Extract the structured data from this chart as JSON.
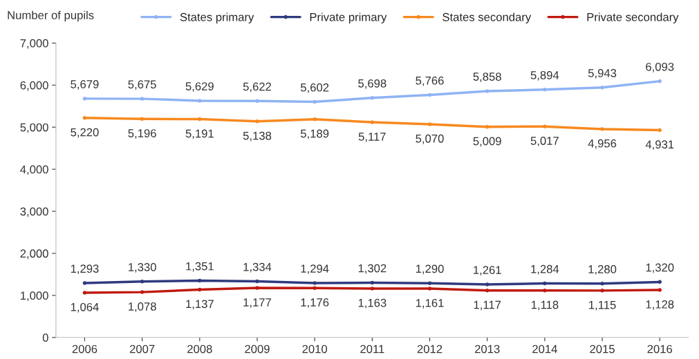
{
  "chart_data": {
    "type": "line",
    "ylabel": "Number of pupils",
    "categories": [
      "2006",
      "2007",
      "2008",
      "2009",
      "2010",
      "2011",
      "2012",
      "2013",
      "2014",
      "2015",
      "2016"
    ],
    "series": [
      {
        "name": "States primary",
        "color": "#8fb3f4",
        "values": [
          5679,
          5675,
          5629,
          5622,
          5602,
          5698,
          5766,
          5858,
          5894,
          5943,
          6093
        ],
        "value_labels": [
          "5,679",
          "5,675",
          "5,629",
          "5,622",
          "5,602",
          "5,698",
          "5,766",
          "5,858",
          "5,894",
          "5,943",
          "6,093"
        ]
      },
      {
        "name": "Private primary",
        "color": "#2f3a7e",
        "values": [
          1293,
          1330,
          1351,
          1334,
          1294,
          1302,
          1290,
          1261,
          1284,
          1280,
          1320
        ],
        "value_labels": [
          "1,293",
          "1,330",
          "1,351",
          "1,334",
          "1,294",
          "1,302",
          "1,290",
          "1,261",
          "1,284",
          "1,280",
          "1,320"
        ]
      },
      {
        "name": "States secondary",
        "color": "#f7891f",
        "values": [
          5220,
          5196,
          5191,
          5138,
          5189,
          5117,
          5070,
          5009,
          5017,
          4956,
          4931
        ],
        "value_labels": [
          "5,220",
          "5,196",
          "5,191",
          "5,138",
          "5,189",
          "5,117",
          "5,070",
          "5,009",
          "5,017",
          "4,956",
          "4,931"
        ]
      },
      {
        "name": "Private secondary",
        "color": "#c01a10",
        "values": [
          1064,
          1078,
          1137,
          1177,
          1176,
          1163,
          1161,
          1117,
          1118,
          1115,
          1128
        ],
        "value_labels": [
          "1,064",
          "1,078",
          "1,137",
          "1,177",
          "1,176",
          "1,163",
          "1,161",
          "1,117",
          "1,118",
          "1,115",
          "1,128"
        ]
      }
    ],
    "ylim": [
      0,
      7000
    ],
    "yticks": [
      {
        "value": 0,
        "label": "0"
      },
      {
        "value": 1000,
        "label": "1,000"
      },
      {
        "value": 2000,
        "label": "2,000"
      },
      {
        "value": 3000,
        "label": "3,000"
      },
      {
        "value": 4000,
        "label": "4,000"
      },
      {
        "value": 5000,
        "label": "5,000"
      },
      {
        "value": 6000,
        "label": "6,000"
      },
      {
        "value": 7000,
        "label": "7,000"
      }
    ],
    "legend": "top",
    "grid": false,
    "marker": "circle",
    "line_style": "solid"
  }
}
